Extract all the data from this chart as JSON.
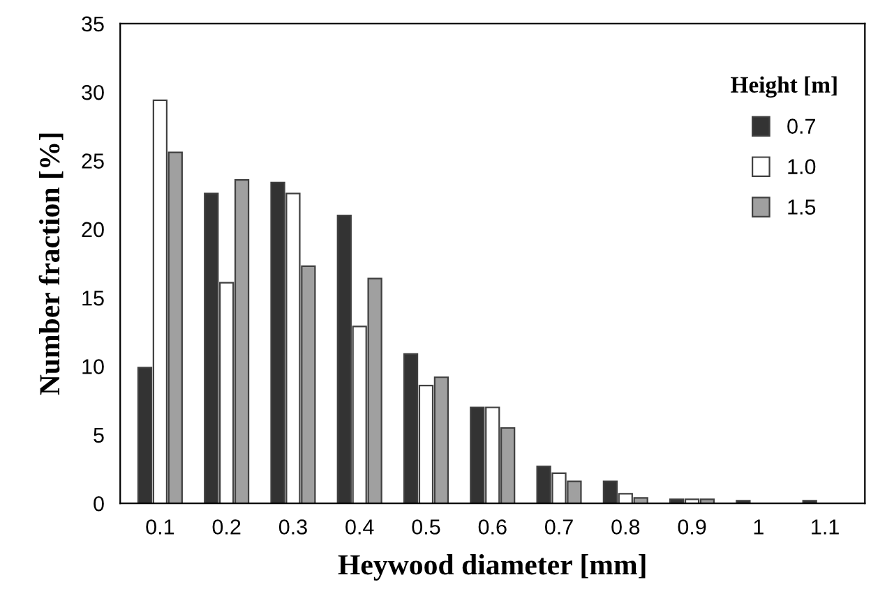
{
  "chart_data": {
    "type": "bar",
    "xlabel": "Heywood diameter [mm]",
    "ylabel": "Number fraction [%]",
    "legend_title": "Height [m]",
    "legend": "top right",
    "grid": false,
    "categories": [
      "0.1",
      "0.2",
      "0.3",
      "0.4",
      "0.5",
      "0.6",
      "0.7",
      "0.8",
      "0.9",
      "1",
      "1.1"
    ],
    "ylim": [
      0,
      35
    ],
    "yticks": [
      0,
      5,
      10,
      15,
      20,
      25,
      30,
      35
    ],
    "series": [
      {
        "name": "0.7",
        "color": "#333333",
        "values": [
          9.9,
          22.6,
          23.4,
          21.0,
          10.9,
          7.0,
          2.7,
          1.6,
          0.3,
          0.2,
          0.2
        ]
      },
      {
        "name": "1.0",
        "color": "#ffffff",
        "values": [
          29.4,
          16.1,
          22.6,
          12.9,
          8.6,
          7.0,
          2.2,
          0.7,
          0.3,
          null,
          null
        ]
      },
      {
        "name": "1.5",
        "color": "#a0a0a0",
        "values": [
          25.6,
          23.6,
          17.3,
          16.4,
          9.2,
          5.5,
          1.6,
          0.4,
          0.3,
          null,
          null
        ]
      }
    ]
  }
}
